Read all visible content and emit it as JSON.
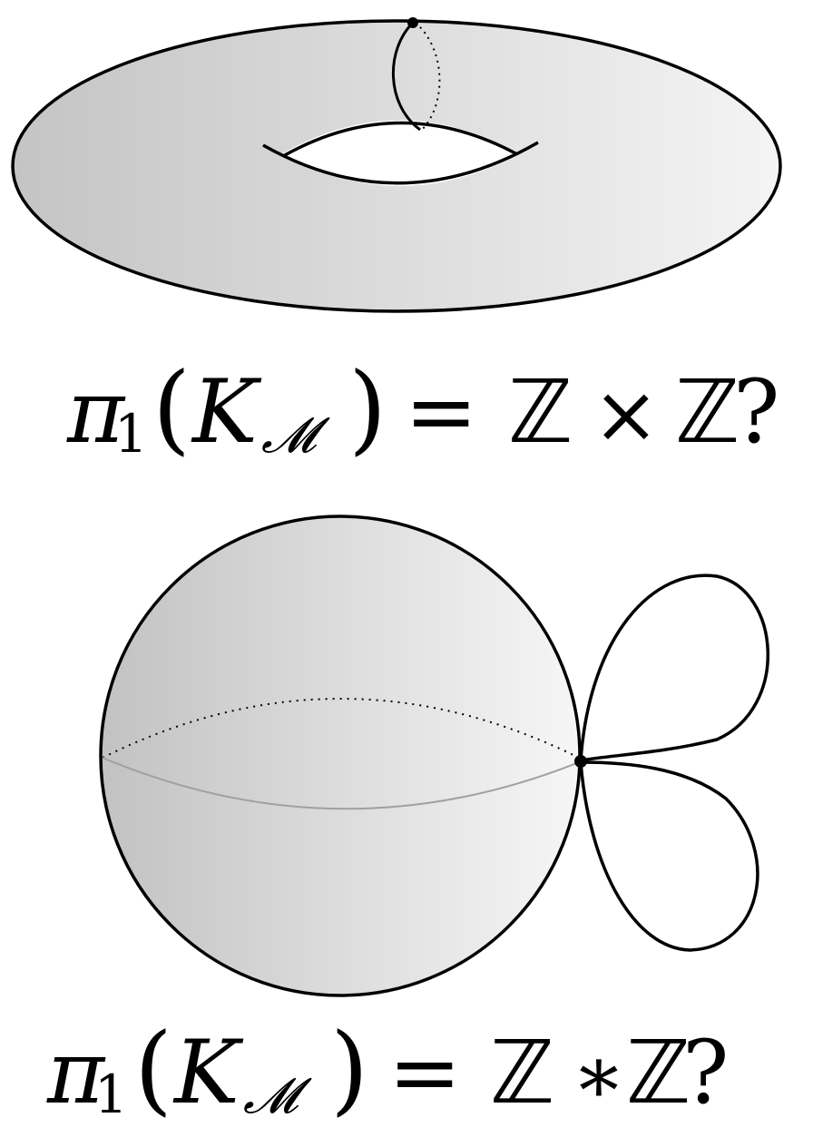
{
  "diagram": {
    "torus_formula": {
      "pi": "π",
      "pi_subscript": "1",
      "open_paren": "(",
      "space": "K",
      "space_subscript": "𝓜",
      "close_paren": ")",
      "equals": "=",
      "lhs_group": "ℤ",
      "operator": "×",
      "rhs_group": "ℤ",
      "question": "?"
    },
    "sphere_formula": {
      "pi": "π",
      "pi_subscript": "1",
      "open_paren": "(",
      "space": "K",
      "space_subscript": "𝓜",
      "close_paren": ")",
      "equals": "=",
      "lhs_group": "ℤ",
      "operator": "∗",
      "rhs_group": "ℤ",
      "question": "?"
    },
    "colors": {
      "stroke": "#000000",
      "fill_dark": "#c4c4c4",
      "fill_light": "#f4f4f4",
      "equator": "#a0a0a0"
    }
  }
}
